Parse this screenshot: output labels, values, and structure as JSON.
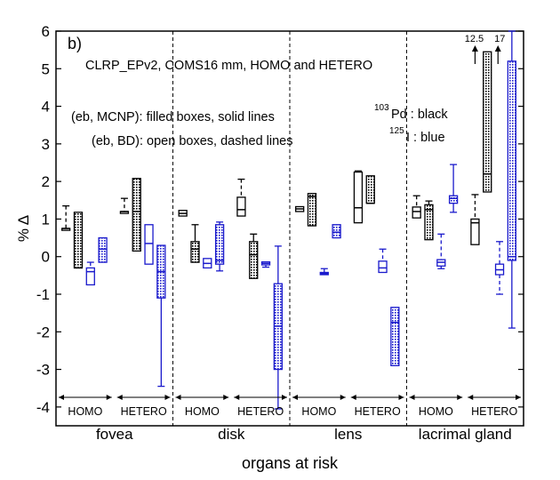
{
  "chart_data": {
    "type": "box",
    "panel_label": "b)",
    "title": "CLRP_EPv2, COMS16 mm, HOMO and HETERO",
    "xlabel": "organs at risk",
    "ylabel": "% Δ",
    "ylim": [
      -4.5,
      6
    ],
    "yticks": [
      6,
      5,
      4,
      3,
      2,
      1,
      0,
      -1,
      -2,
      -3,
      -4
    ],
    "legend": {
      "line1": "(eb, MCNP): filled boxes, solid lines",
      "line2": "(eb, BD): open boxes, dashed lines",
      "pd_sup": "103",
      "pd_text": "Pd : black",
      "i_sup": "125",
      "i_text": "I : blue"
    },
    "colors": {
      "pd": "#000000",
      "i": "#1a1acc"
    },
    "organs": [
      {
        "name": "fovea",
        "groups": [
          "HOMO",
          "HETERO"
        ]
      },
      {
        "name": "disk",
        "groups": [
          "HOMO",
          "HETERO"
        ]
      },
      {
        "name": "lens",
        "groups": [
          "HOMO",
          "HETERO"
        ]
      },
      {
        "name": "lacrimal gland",
        "groups": [
          "HOMO",
          "HETERO"
        ]
      }
    ],
    "arrow_labels": [
      {
        "text": "12.5",
        "value": 12.5
      },
      {
        "text": "17",
        "value": 17
      }
    ],
    "boxes": [
      {
        "organ": "fovea",
        "group": "HOMO",
        "isotope": "Pd",
        "filled": false,
        "whislo": 0.7,
        "q1": 0.7,
        "med": 0.75,
        "q3": 0.75,
        "whishi": 1.35
      },
      {
        "organ": "fovea",
        "group": "HOMO",
        "isotope": "Pd",
        "filled": true,
        "whislo": -0.3,
        "q1": -0.3,
        "med": -0.3,
        "q3": 1.18,
        "whishi": 1.18
      },
      {
        "organ": "fovea",
        "group": "HOMO",
        "isotope": "I",
        "filled": false,
        "whislo": -0.75,
        "q1": -0.75,
        "med": -0.4,
        "q3": -0.3,
        "whishi": -0.15
      },
      {
        "organ": "fovea",
        "group": "HOMO",
        "isotope": "I",
        "filled": true,
        "whislo": -0.15,
        "q1": -0.15,
        "med": 0.2,
        "q3": 0.5,
        "whishi": 0.5
      },
      {
        "organ": "fovea",
        "group": "HETERO",
        "isotope": "Pd",
        "filled": false,
        "whislo": 1.15,
        "q1": 1.15,
        "med": 1.2,
        "q3": 1.2,
        "whishi": 1.55
      },
      {
        "organ": "fovea",
        "group": "HETERO",
        "isotope": "Pd",
        "filled": true,
        "whislo": 0.15,
        "q1": 0.15,
        "med": 1.2,
        "q3": 2.08,
        "whishi": 2.08
      },
      {
        "organ": "fovea",
        "group": "HETERO",
        "isotope": "I",
        "filled": false,
        "whislo": -0.2,
        "q1": -0.2,
        "med": 0.35,
        "q3": 0.85,
        "whishi": 0.85
      },
      {
        "organ": "fovea",
        "group": "HETERO",
        "isotope": "I",
        "filled": true,
        "whislo": -3.45,
        "q1": -1.1,
        "med": -0.4,
        "q3": 0.3,
        "whishi": 0.3
      },
      {
        "organ": "disk",
        "group": "HOMO",
        "isotope": "Pd",
        "filled": false,
        "whislo": 1.08,
        "q1": 1.08,
        "med": 1.15,
        "q3": 1.23,
        "whishi": 1.23
      },
      {
        "organ": "disk",
        "group": "HOMO",
        "isotope": "Pd",
        "filled": true,
        "whislo": -0.15,
        "q1": -0.15,
        "med": 0.2,
        "q3": 0.4,
        "whishi": 0.85
      },
      {
        "organ": "disk",
        "group": "HOMO",
        "isotope": "I",
        "filled": false,
        "whislo": -0.3,
        "q1": -0.3,
        "med": -0.18,
        "q3": -0.05,
        "whishi": -0.05
      },
      {
        "organ": "disk",
        "group": "HOMO",
        "isotope": "I",
        "filled": true,
        "whislo": -0.38,
        "q1": -0.2,
        "med": -0.1,
        "q3": 0.85,
        "whishi": 0.92
      },
      {
        "organ": "disk",
        "group": "HETERO",
        "isotope": "Pd",
        "filled": false,
        "whislo": 1.08,
        "q1": 1.08,
        "med": 1.25,
        "q3": 1.58,
        "whishi": 2.06
      },
      {
        "organ": "disk",
        "group": "HETERO",
        "isotope": "Pd",
        "filled": true,
        "whislo": -0.58,
        "q1": -0.58,
        "med": 0.05,
        "q3": 0.4,
        "whishi": 0.6
      },
      {
        "organ": "disk",
        "group": "HETERO",
        "isotope": "I",
        "filled": false,
        "whislo": -0.28,
        "q1": -0.22,
        "med": -0.18,
        "q3": -0.14,
        "whishi": -0.14
      },
      {
        "organ": "disk",
        "group": "HETERO",
        "isotope": "I",
        "filled": true,
        "whislo": -4.05,
        "q1": -3.0,
        "med": -1.85,
        "q3": -0.72,
        "whishi": 0.28
      },
      {
        "organ": "lens",
        "group": "HOMO",
        "isotope": "Pd",
        "filled": false,
        "whislo": 1.2,
        "q1": 1.2,
        "med": 1.27,
        "q3": 1.33,
        "whishi": 1.33
      },
      {
        "organ": "lens",
        "group": "HOMO",
        "isotope": "Pd",
        "filled": true,
        "whislo": 0.82,
        "q1": 0.82,
        "med": 1.6,
        "q3": 1.68,
        "whishi": 1.68
      },
      {
        "organ": "lens",
        "group": "HOMO",
        "isotope": "I",
        "filled": false,
        "whislo": -0.48,
        "q1": -0.48,
        "med": -0.45,
        "q3": -0.42,
        "whishi": -0.32
      },
      {
        "organ": "lens",
        "group": "HOMO",
        "isotope": "I",
        "filled": true,
        "whislo": 0.5,
        "q1": 0.5,
        "med": 0.65,
        "q3": 0.85,
        "whishi": 0.85
      },
      {
        "organ": "lens",
        "group": "HETERO",
        "isotope": "Pd",
        "filled": false,
        "whislo": 0.9,
        "q1": 0.9,
        "med": 1.3,
        "q3": 2.25,
        "whishi": 2.28
      },
      {
        "organ": "lens",
        "group": "HETERO",
        "isotope": "Pd",
        "filled": true,
        "whislo": 1.42,
        "q1": 1.42,
        "med": 1.42,
        "q3": 2.15,
        "whishi": 2.15
      },
      {
        "organ": "lens",
        "group": "HETERO",
        "isotope": "I",
        "filled": false,
        "whislo": -0.42,
        "q1": -0.42,
        "med": -0.3,
        "q3": -0.12,
        "whishi": 0.2
      },
      {
        "organ": "lens",
        "group": "HETERO",
        "isotope": "I",
        "filled": true,
        "whislo": -2.9,
        "q1": -2.9,
        "med": -1.75,
        "q3": -1.35,
        "whishi": -1.35
      },
      {
        "organ": "lacrimal gland",
        "group": "HOMO",
        "isotope": "Pd",
        "filled": false,
        "whislo": 1.03,
        "q1": 1.03,
        "med": 1.2,
        "q3": 1.32,
        "whishi": 1.62
      },
      {
        "organ": "lacrimal gland",
        "group": "HOMO",
        "isotope": "Pd",
        "filled": true,
        "whislo": 0.45,
        "q1": 0.45,
        "med": 1.25,
        "q3": 1.38,
        "whishi": 1.48
      },
      {
        "organ": "lacrimal gland",
        "group": "HOMO",
        "isotope": "I",
        "filled": false,
        "whislo": -0.32,
        "q1": -0.25,
        "med": -0.15,
        "q3": -0.08,
        "whishi": 0.6
      },
      {
        "organ": "lacrimal gland",
        "group": "HOMO",
        "isotope": "I",
        "filled": true,
        "whislo": 1.18,
        "q1": 1.42,
        "med": 1.55,
        "q3": 1.62,
        "whishi": 2.45
      },
      {
        "organ": "lacrimal gland",
        "group": "HETERO",
        "isotope": "Pd",
        "filled": false,
        "whislo": 0.32,
        "q1": 0.32,
        "med": 0.9,
        "q3": 1.0,
        "whishi": 1.65
      },
      {
        "organ": "lacrimal gland",
        "group": "HETERO",
        "isotope": "Pd",
        "filled": true,
        "whislo": 1.72,
        "q1": 1.72,
        "med": 2.2,
        "q3": 5.45,
        "whishi": 5.45
      },
      {
        "organ": "lacrimal gland",
        "group": "HETERO",
        "isotope": "I",
        "filled": false,
        "whislo": -1.0,
        "q1": -0.48,
        "med": -0.35,
        "q3": -0.2,
        "whishi": 0.4
      },
      {
        "organ": "lacrimal gland",
        "group": "HETERO",
        "isotope": "I",
        "filled": true,
        "whislo": -1.9,
        "q1": -0.1,
        "med": 0.0,
        "q3": 5.2,
        "whishi": 6.0
      }
    ]
  }
}
